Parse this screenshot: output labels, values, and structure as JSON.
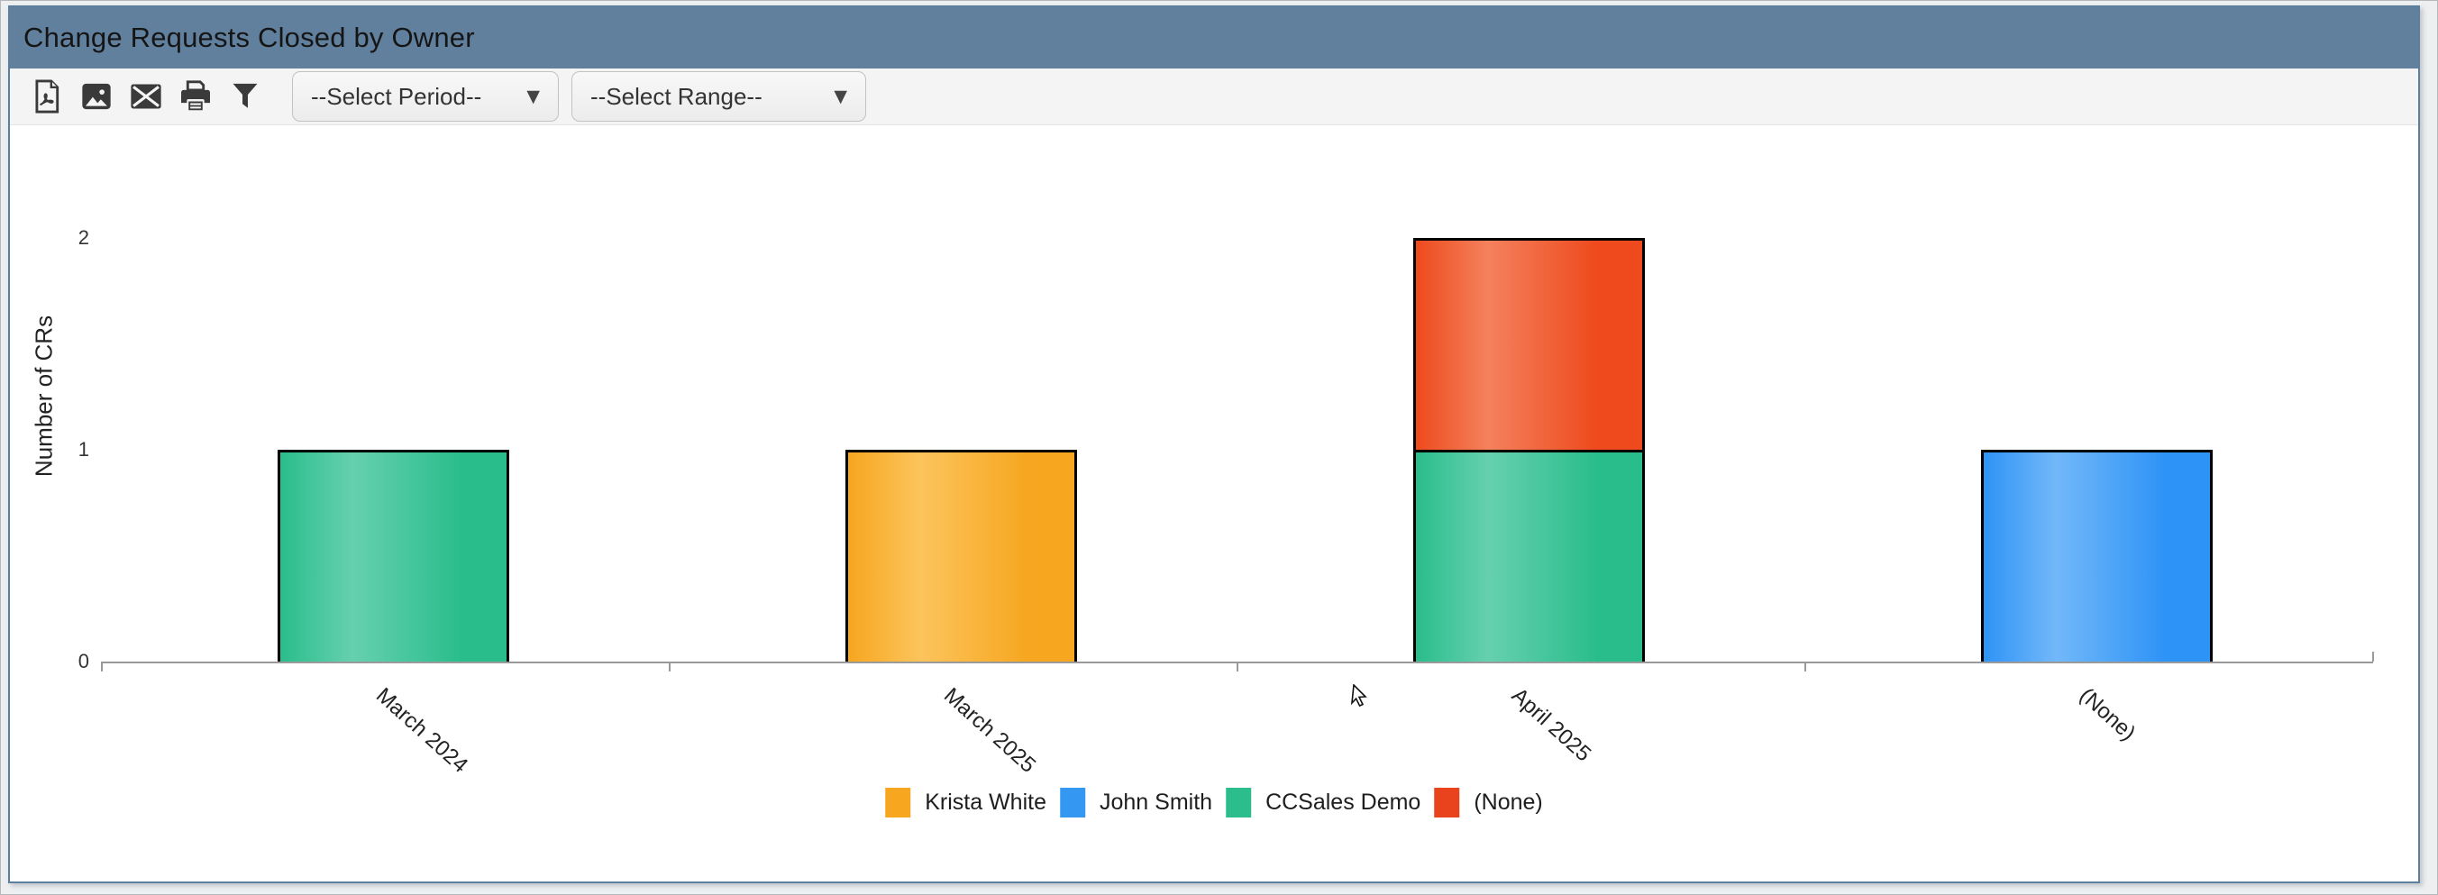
{
  "window": {
    "title": "Change Requests Closed by Owner"
  },
  "toolbar": {
    "icons": [
      "pdf-export",
      "image-export",
      "email",
      "print",
      "filter"
    ],
    "period_dropdown": {
      "value": "--Select Period--",
      "arrow": "▼"
    },
    "range_dropdown": {
      "value": "--Select Range--",
      "arrow": "▼"
    }
  },
  "chart_data": {
    "type": "bar",
    "stacked": true,
    "title": "Change Requests Closed by Owner",
    "xlabel": "",
    "ylabel": "Number of CRs",
    "categories": [
      "March 2024",
      "March 2025",
      "April 2025",
      "(None)"
    ],
    "series": [
      {
        "name": "Krista White",
        "color": "#F7A620",
        "gradient": [
          "#F6A61F",
          "#FCC45C"
        ],
        "values": [
          0,
          1,
          0,
          0
        ]
      },
      {
        "name": "John Smith",
        "color": "#3498F3",
        "gradient": [
          "#2E93F6",
          "#72B8F9"
        ],
        "values": [
          0,
          0,
          0,
          1
        ]
      },
      {
        "name": "CCSales Demo",
        "color": "#2BBE8C",
        "gradient": [
          "#2ABD8C",
          "#66D0AE"
        ],
        "values": [
          1,
          0,
          1,
          0
        ]
      },
      {
        "name": "(None)",
        "color": "#E8431C",
        "gradient": [
          "#EE4A1D",
          "#F4815D"
        ],
        "values": [
          0,
          0,
          1,
          0
        ]
      }
    ],
    "yticks": [
      0,
      1,
      2
    ],
    "ylim": [
      0,
      2
    ],
    "grid": false,
    "legend_position": "bottom"
  },
  "colors": {
    "header_bg": "#61809D",
    "panel_border": "#5C7F9D",
    "toolbar_bg": "#F4F4F4",
    "icon": "#3A3A3A",
    "axis": "#9A9A9A"
  }
}
